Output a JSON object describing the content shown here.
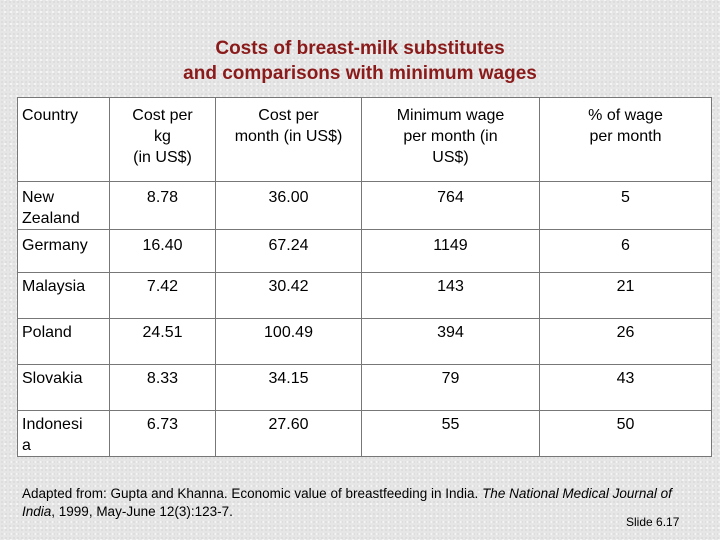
{
  "slide": {
    "title_line1": "Costs of breast-milk substitutes",
    "title_line2": "and comparisons with minimum wages",
    "slide_number": "Slide 6.17"
  },
  "table": {
    "headers": [
      "Country",
      "Cost per\nkg\n(in US$)",
      "Cost per\nmonth (in US$)",
      "Minimum wage\nper month (in\nUS$)",
      "% of wage\nper month"
    ],
    "rows": [
      [
        "New\nZealand",
        "8.78",
        "36.00",
        "764",
        "5"
      ],
      [
        "Germany",
        "16.40",
        "67.24",
        "1149",
        "6"
      ],
      [
        "Malaysia",
        "7.42",
        "30.42",
        "143",
        "21"
      ],
      [
        "Poland",
        "24.51",
        "100.49",
        "394",
        "26"
      ],
      [
        "Slovakia",
        "8.33",
        "34.15",
        "79",
        "43"
      ],
      [
        "Indonesi\na",
        "6.73",
        "27.60",
        "55",
        "50"
      ]
    ]
  },
  "citation": {
    "prefix": "Adapted from: Gupta and Khanna. Economic value of breastfeeding in India. ",
    "journal": "The National Medical Journal of India",
    "suffix": ", 1999, May-June 12(3):123-7."
  }
}
